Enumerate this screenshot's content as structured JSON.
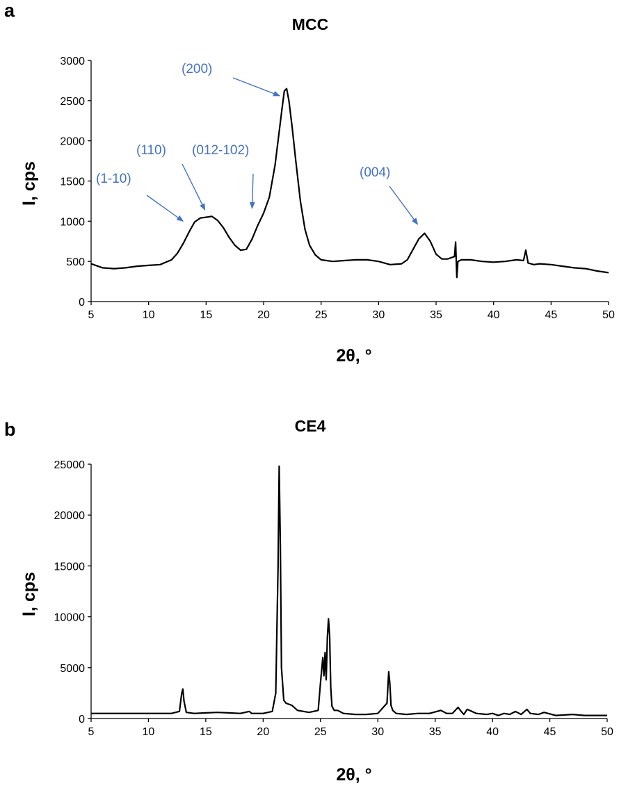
{
  "figure": {
    "panels": [
      {
        "letter": "a"
      },
      {
        "letter": "b"
      }
    ]
  },
  "colors": {
    "annotation": "#4472C4",
    "series": "#000000"
  },
  "chart_data": [
    {
      "type": "line",
      "title": "MCC",
      "xlabel": "2θ, °",
      "ylabel": "I, cps",
      "xlim": [
        5,
        50
      ],
      "ylim": [
        0,
        3000
      ],
      "xticks": [
        5,
        10,
        15,
        20,
        25,
        30,
        35,
        40,
        45,
        50
      ],
      "yticks": [
        0,
        500,
        1000,
        1500,
        2000,
        2500,
        3000
      ],
      "grid": false,
      "series": [
        {
          "x": [
            5,
            6,
            7,
            8,
            9,
            10,
            11,
            12,
            12.5,
            13,
            13.5,
            14,
            14.5,
            15,
            15.5,
            16,
            16.5,
            17,
            17.5,
            18,
            18.5,
            19,
            19.5,
            20,
            20.5,
            21,
            21.3,
            21.6,
            21.8,
            22,
            22.2,
            22.5,
            22.8,
            23.2,
            23.6,
            24,
            24.5,
            25,
            26,
            27,
            28,
            29,
            30,
            31,
            32,
            32.5,
            33,
            33.5,
            34,
            34.5,
            35,
            35.5,
            36,
            36.6,
            36.7,
            36.8,
            36.9,
            37.2,
            38,
            39,
            40,
            41,
            42,
            42.6,
            42.8,
            43,
            43.5,
            44,
            45,
            46,
            47,
            48,
            49,
            50
          ],
          "y": [
            470,
            420,
            410,
            420,
            440,
            450,
            460,
            520,
            600,
            720,
            860,
            990,
            1040,
            1050,
            1060,
            1010,
            920,
            800,
            700,
            640,
            650,
            780,
            950,
            1100,
            1300,
            1700,
            2050,
            2400,
            2620,
            2650,
            2500,
            2150,
            1750,
            1250,
            900,
            700,
            580,
            520,
            500,
            510,
            520,
            520,
            500,
            460,
            470,
            520,
            650,
            780,
            850,
            750,
            590,
            530,
            530,
            560,
            740,
            300,
            500,
            520,
            520,
            500,
            490,
            500,
            520,
            510,
            640,
            480,
            460,
            470,
            460,
            440,
            420,
            410,
            380,
            360
          ]
        }
      ],
      "annotations": [
        {
          "text": "(1-10)",
          "x": 13,
          "y": 1000
        },
        {
          "text": "(110)",
          "x": 14.9,
          "y": 1140
        },
        {
          "text": "(012-102)",
          "x": 19,
          "y": 1160
        },
        {
          "text": "(200)",
          "x": 21.4,
          "y": 2560
        },
        {
          "text": "(004)",
          "x": 33.4,
          "y": 960
        }
      ]
    },
    {
      "type": "line",
      "title": "CE4",
      "xlabel": "2θ, °",
      "ylabel": "I, cps",
      "xlim": [
        5,
        50
      ],
      "ylim": [
        0,
        25000
      ],
      "xticks": [
        5,
        10,
        15,
        20,
        25,
        30,
        35,
        40,
        45,
        50
      ],
      "yticks": [
        0,
        5000,
        10000,
        15000,
        20000,
        25000
      ],
      "grid": false,
      "series": [
        {
          "x": [
            5,
            8,
            10,
            12,
            12.7,
            12.9,
            13.0,
            13.1,
            13.3,
            14,
            15,
            16,
            17,
            18,
            18.8,
            19,
            20,
            20.8,
            21.1,
            21.3,
            21.4,
            21.5,
            21.6,
            21.8,
            22,
            22.5,
            23,
            24,
            24.8,
            25.0,
            25.2,
            25.3,
            25.4,
            25.5,
            25.6,
            25.7,
            25.8,
            25.9,
            26.0,
            26.2,
            26.5,
            27,
            28,
            29,
            30,
            30.8,
            30.95,
            31.05,
            31.15,
            31.3,
            31.6,
            32.5,
            33.5,
            34.5,
            35.5,
            36.0,
            36.5,
            37.0,
            37.2,
            37.5,
            37.8,
            38.2,
            38.6,
            39.5,
            40.0,
            40.5,
            41.0,
            41.5,
            42.0,
            42.5,
            43.0,
            43.3,
            44.0,
            44.5,
            45.5,
            47,
            48,
            50
          ],
          "y": [
            500,
            500,
            500,
            500,
            700,
            2500,
            2900,
            1700,
            600,
            500,
            550,
            600,
            550,
            500,
            700,
            500,
            500,
            700,
            2500,
            15000,
            24800,
            17000,
            5000,
            1800,
            1500,
            1300,
            800,
            600,
            800,
            3500,
            6000,
            4200,
            6500,
            3800,
            8000,
            9800,
            8000,
            3000,
            1200,
            800,
            800,
            500,
            400,
            400,
            500,
            1500,
            4600,
            3500,
            1300,
            800,
            500,
            400,
            500,
            500,
            800,
            500,
            500,
            1100,
            800,
            400,
            900,
            700,
            500,
            400,
            500,
            300,
            500,
            400,
            700,
            400,
            900,
            500,
            400,
            600,
            300,
            400,
            300,
            300
          ]
        }
      ],
      "annotations": []
    }
  ]
}
